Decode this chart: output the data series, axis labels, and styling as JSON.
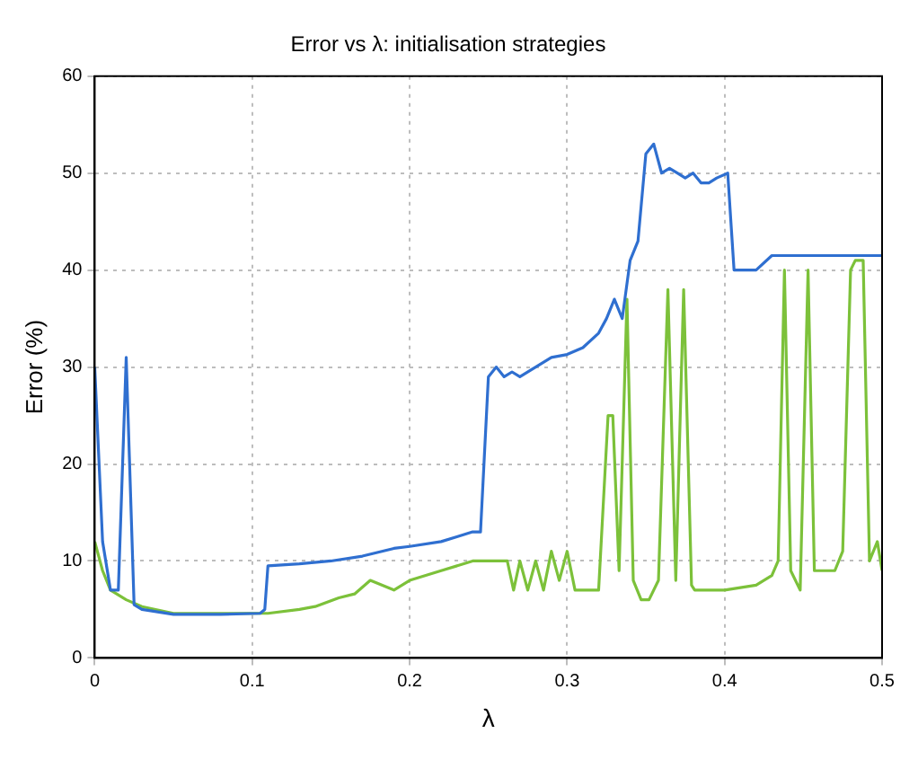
{
  "chart_data": {
    "type": "line",
    "title": "Error vs λ: initialisation strategies",
    "xlabel": "λ",
    "ylabel": "Error (%)",
    "xlim": [
      0,
      0.5
    ],
    "ylim": [
      0,
      60
    ],
    "xticks": [
      0,
      0.1,
      0.2,
      0.3,
      0.4,
      0.5
    ],
    "yticks": [
      0,
      10,
      20,
      30,
      40,
      50,
      60
    ],
    "grid": true,
    "marker": "none",
    "line_style": "solid",
    "series": [
      {
        "color": "#2f6fd0",
        "x": [
          0,
          0.005,
          0.01,
          0.015,
          0.02,
          0.025,
          0.03,
          0.05,
          0.08,
          0.105,
          0.108,
          0.11,
          0.13,
          0.15,
          0.17,
          0.19,
          0.2,
          0.22,
          0.23,
          0.24,
          0.245,
          0.25,
          0.255,
          0.26,
          0.265,
          0.27,
          0.28,
          0.29,
          0.3,
          0.31,
          0.32,
          0.325,
          0.33,
          0.335,
          0.34,
          0.345,
          0.35,
          0.355,
          0.36,
          0.365,
          0.37,
          0.375,
          0.38,
          0.385,
          0.39,
          0.395,
          0.402,
          0.406,
          0.42,
          0.43,
          0.45,
          0.5
        ],
        "values": [
          30,
          12,
          7,
          7,
          31,
          5.5,
          5,
          4.5,
          4.5,
          4.6,
          5,
          9.5,
          9.7,
          10,
          10.5,
          11.3,
          11.5,
          12,
          12.5,
          13,
          13,
          29,
          30,
          29,
          29.5,
          29,
          30,
          31,
          31.3,
          32,
          33.5,
          35,
          37,
          35,
          41,
          43,
          52,
          53,
          50,
          50.5,
          50,
          49.5,
          50,
          49,
          49,
          49.5,
          50,
          40,
          40,
          41.5,
          41.5,
          41.5
        ]
      },
      {
        "color": "#7cc13a",
        "x": [
          0,
          0.005,
          0.01,
          0.02,
          0.03,
          0.05,
          0.11,
          0.13,
          0.14,
          0.155,
          0.165,
          0.175,
          0.19,
          0.2,
          0.22,
          0.24,
          0.255,
          0.262,
          0.266,
          0.27,
          0.275,
          0.28,
          0.285,
          0.29,
          0.295,
          0.3,
          0.305,
          0.31,
          0.315,
          0.32,
          0.326,
          0.329,
          0.333,
          0.338,
          0.342,
          0.347,
          0.352,
          0.358,
          0.364,
          0.369,
          0.374,
          0.379,
          0.381,
          0.4,
          0.42,
          0.43,
          0.434,
          0.438,
          0.442,
          0.448,
          0.453,
          0.457,
          0.47,
          0.475,
          0.48,
          0.483,
          0.488,
          0.492,
          0.497,
          0.5
        ],
        "values": [
          12,
          9,
          7,
          6,
          5.3,
          4.6,
          4.6,
          5,
          5.3,
          6.2,
          6.6,
          8,
          7,
          8,
          9,
          10,
          10,
          10,
          7,
          10,
          7,
          10,
          7,
          11,
          8,
          11,
          7,
          7,
          7,
          7,
          25,
          25,
          9,
          37,
          8,
          6,
          6,
          8,
          38,
          8,
          38,
          7.5,
          7,
          7,
          7.5,
          8.5,
          10,
          40,
          9,
          7,
          40,
          9,
          9,
          11,
          40,
          41,
          41,
          10,
          12,
          9
        ]
      }
    ]
  }
}
